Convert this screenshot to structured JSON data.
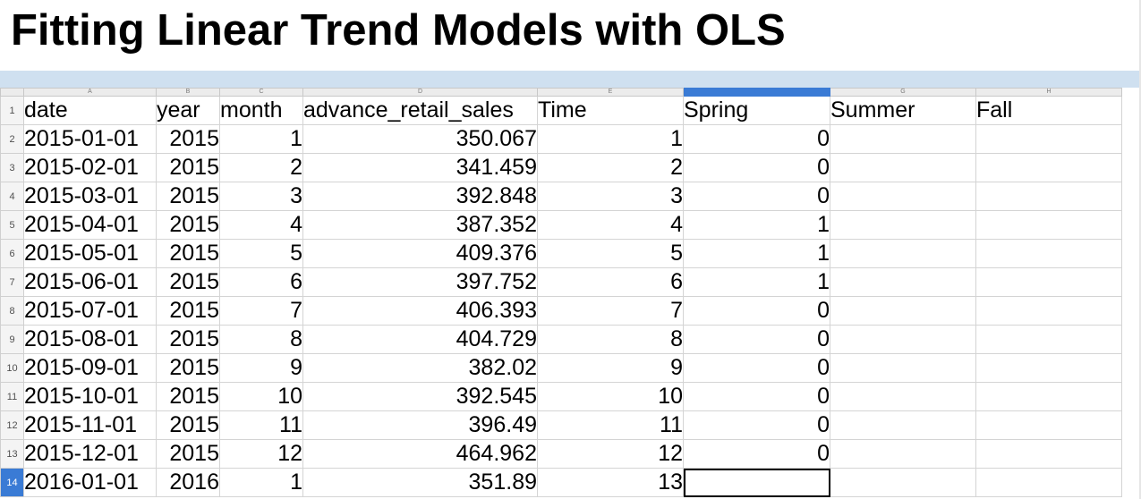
{
  "page_title": "Fitting Linear Trend Models with OLS",
  "sheet": {
    "column_letters": [
      "A",
      "B",
      "C",
      "D",
      "E",
      "F",
      "G",
      "H"
    ],
    "selected_column": "F",
    "header_row": {
      "row_number": "1",
      "cells": [
        "date",
        "year",
        "month",
        "advance_retail_sales",
        "Time",
        "Spring",
        "Summer",
        "Fall"
      ]
    },
    "rows": [
      {
        "n": "2",
        "cells": [
          "2015-01-01",
          "2015",
          "1",
          "350.067",
          "1",
          "0",
          "",
          ""
        ]
      },
      {
        "n": "3",
        "cells": [
          "2015-02-01",
          "2015",
          "2",
          "341.459",
          "2",
          "0",
          "",
          ""
        ]
      },
      {
        "n": "4",
        "cells": [
          "2015-03-01",
          "2015",
          "3",
          "392.848",
          "3",
          "0",
          "",
          ""
        ]
      },
      {
        "n": "5",
        "cells": [
          "2015-04-01",
          "2015",
          "4",
          "387.352",
          "4",
          "1",
          "",
          ""
        ]
      },
      {
        "n": "6",
        "cells": [
          "2015-05-01",
          "2015",
          "5",
          "409.376",
          "5",
          "1",
          "",
          ""
        ]
      },
      {
        "n": "7",
        "cells": [
          "2015-06-01",
          "2015",
          "6",
          "397.752",
          "6",
          "1",
          "",
          ""
        ]
      },
      {
        "n": "8",
        "cells": [
          "2015-07-01",
          "2015",
          "7",
          "406.393",
          "7",
          "0",
          "",
          ""
        ]
      },
      {
        "n": "9",
        "cells": [
          "2015-08-01",
          "2015",
          "8",
          "404.729",
          "8",
          "0",
          "",
          ""
        ]
      },
      {
        "n": "10",
        "cells": [
          "2015-09-01",
          "2015",
          "9",
          "382.02",
          "9",
          "0",
          "",
          ""
        ]
      },
      {
        "n": "11",
        "cells": [
          "2015-10-01",
          "2015",
          "10",
          "392.545",
          "10",
          "0",
          "",
          ""
        ]
      },
      {
        "n": "12",
        "cells": [
          "2015-11-01",
          "2015",
          "11",
          "396.49",
          "11",
          "0",
          "",
          ""
        ]
      },
      {
        "n": "13",
        "cells": [
          "2015-12-01",
          "2015",
          "12",
          "464.962",
          "12",
          "0",
          "",
          ""
        ]
      },
      {
        "n": "14",
        "cells": [
          "2016-01-01",
          "2016",
          "1",
          "351.89",
          "13",
          "",
          "",
          ""
        ]
      }
    ],
    "active_cell": "F14",
    "colors": {
      "selection_accent": "#3a7bd5",
      "toolbar_strip": "#cfe0f0"
    }
  }
}
